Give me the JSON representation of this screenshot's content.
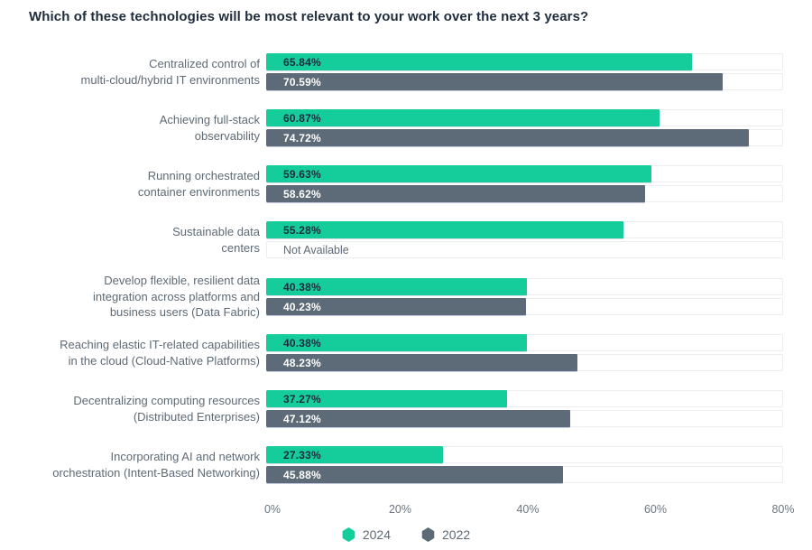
{
  "chart_data": {
    "type": "bar",
    "orientation": "horizontal",
    "title": "Which of these technologies will be most relevant to your work over the next 3 years?",
    "categories": [
      [
        "Centralized control of",
        "multi-cloud/hybrid IT environments"
      ],
      [
        "Achieving full-stack",
        "observability"
      ],
      [
        "Running orchestrated",
        "container environments"
      ],
      [
        "Sustainable data",
        "centers"
      ],
      [
        "Develop flexible, resilient data",
        "integration across platforms and",
        "business users (Data Fabric)"
      ],
      [
        "Reaching elastic IT-related capabilities",
        "in the cloud (Cloud-Native Platforms)"
      ],
      [
        "Decentralizing computing resources",
        "(Distributed Enterprises)"
      ],
      [
        "Incorporating AI and network",
        "orchestration (Intent-Based Networking)"
      ]
    ],
    "series": [
      {
        "name": "2024",
        "color": "#15cd9b",
        "values": [
          65.84,
          60.87,
          59.63,
          55.28,
          40.38,
          40.38,
          37.27,
          27.33
        ],
        "labels": [
          "65.84%",
          "60.87%",
          "59.63%",
          "55.28%",
          "40.38%",
          "40.38%",
          "37.27%",
          "27.33%"
        ]
      },
      {
        "name": "2022",
        "color": "#5d6b78",
        "values": [
          70.59,
          74.72,
          58.62,
          null,
          40.23,
          48.23,
          47.12,
          45.88
        ],
        "labels": [
          "70.59%",
          "74.72%",
          "58.62%",
          null,
          "40.23%",
          "48.23%",
          "47.12%",
          "45.88%"
        ]
      }
    ],
    "not_available_label": "Not Available",
    "xlim": [
      0,
      80
    ],
    "x_ticks": [
      "0%",
      "20%",
      "40%",
      "60%",
      "80%"
    ],
    "grid": false,
    "legend_position": "bottom",
    "value_text_color_on_2024": "#1b2b3d",
    "value_text_color_on_2022": "#ffffff"
  }
}
